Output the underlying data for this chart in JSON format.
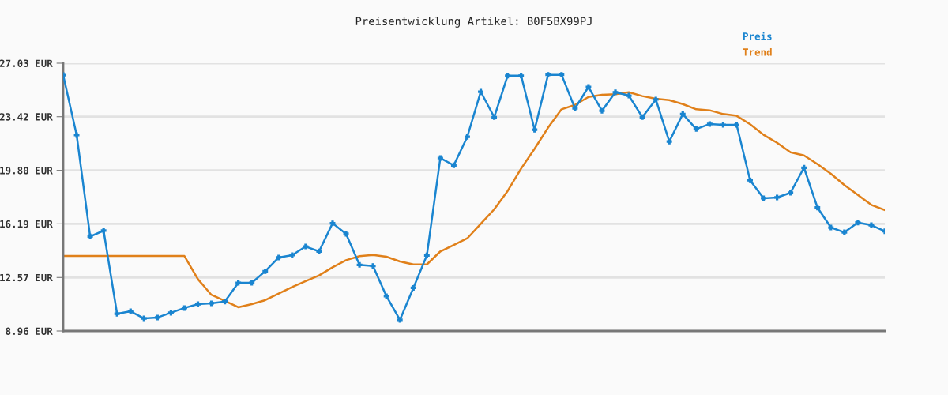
{
  "chart_data": {
    "type": "line",
    "title": "Preisentwicklung Artikel: B0F5BX99PJ",
    "categories": [
      null,
      null,
      null,
      null,
      null,
      null,
      null,
      null,
      null,
      null,
      null,
      null,
      null,
      null,
      null,
      null,
      null,
      null,
      null,
      null,
      null,
      null,
      null,
      null,
      null,
      null,
      null,
      null,
      null,
      null,
      null,
      null,
      null,
      null,
      null,
      null,
      null,
      null,
      null,
      null,
      null,
      null,
      null,
      null,
      null,
      null,
      null,
      null,
      null,
      null,
      null,
      null,
      null,
      null,
      null,
      null,
      null,
      null,
      null,
      null,
      null,
      null
    ],
    "series": [
      {
        "name": "Preis",
        "color": "#1a85d0",
        "marker": "cross",
        "values": [
          26.23,
          22.18,
          15.34,
          15.73,
          10.12,
          10.29,
          9.81,
          9.87,
          10.19,
          10.51,
          10.77,
          10.83,
          10.95,
          12.21,
          12.21,
          12.99,
          13.92,
          14.08,
          14.66,
          14.33,
          16.23,
          15.52,
          13.42,
          13.35,
          11.31,
          9.71,
          11.87,
          14.06,
          20.63,
          20.14,
          22.06,
          25.11,
          23.39,
          26.19,
          26.19,
          22.54,
          26.25,
          26.25,
          23.98,
          25.43,
          23.82,
          25.07,
          24.84,
          23.39,
          24.58,
          21.74,
          23.6,
          22.59,
          22.93,
          22.87,
          22.87,
          19.13,
          17.92,
          17.97,
          18.29,
          19.98,
          17.29,
          15.94,
          15.62,
          16.28,
          16.1,
          15.69
        ]
      },
      {
        "name": "Trend",
        "color": "#e0801a",
        "marker": "none",
        "values": [
          14.02,
          14.02,
          14.02,
          14.02,
          14.02,
          14.02,
          14.02,
          14.02,
          14.02,
          14.02,
          12.46,
          11.4,
          10.99,
          10.56,
          10.77,
          11.04,
          11.48,
          11.93,
          12.33,
          12.71,
          13.26,
          13.74,
          14.01,
          14.09,
          13.97,
          13.65,
          13.45,
          13.45,
          14.33,
          14.77,
          15.21,
          16.19,
          17.17,
          18.41,
          19.92,
          21.26,
          22.68,
          23.92,
          24.22,
          24.75,
          24.9,
          24.94,
          25.07,
          24.81,
          24.63,
          24.54,
          24.27,
          23.92,
          23.85,
          23.6,
          23.48,
          22.91,
          22.2,
          21.66,
          21.02,
          20.81,
          20.22,
          19.57,
          18.81,
          18.14,
          17.47,
          17.12
        ]
      }
    ],
    "ylim": [
      8.96,
      27.03
    ],
    "yticks": [
      {
        "value": 8.96,
        "label": "8.96 EUR"
      },
      {
        "value": 12.57,
        "label": "12.57 EUR"
      },
      {
        "value": 16.19,
        "label": "16.19 EUR"
      },
      {
        "value": 19.8,
        "label": "19.80 EUR"
      },
      {
        "value": 23.42,
        "label": "23.42 EUR"
      },
      {
        "value": 27.03,
        "label": "27.03 EUR"
      }
    ],
    "tick_labels": "y",
    "grid": "y",
    "legend": "top right",
    "line_style": "solid"
  }
}
